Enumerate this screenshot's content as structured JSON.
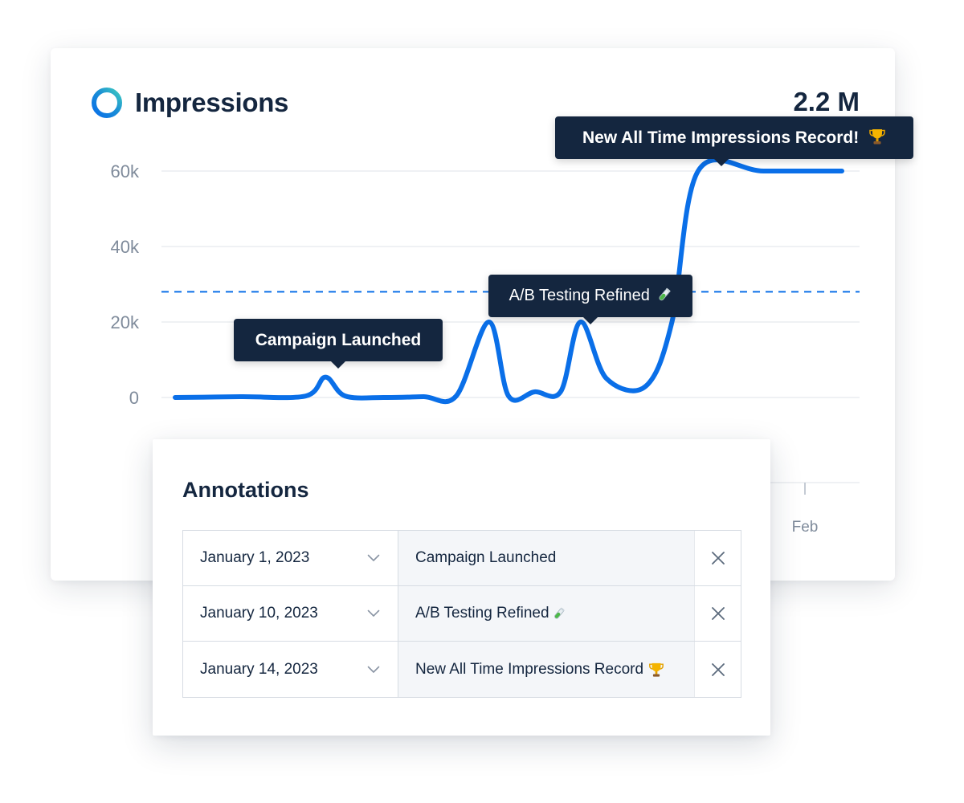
{
  "widget": {
    "title": "Impressions",
    "total": "2.2 M",
    "ring_icon": "circular-gradient-ring-icon",
    "brand_color": "#0a6fe8",
    "ring_gradient": [
      "#2bc1c4",
      "#0a6fe8"
    ]
  },
  "chart_data": {
    "type": "line",
    "y_ticks": [
      "0",
      "20k",
      "40k",
      "60k"
    ],
    "ylim": [
      0,
      60000
    ],
    "x_tick_labels": [
      "Feb"
    ],
    "grid": true,
    "reference_line": {
      "value": 28000,
      "style": "dashed"
    },
    "series": [
      {
        "color": "#0a6fe8",
        "points": [
          [
            0,
            0
          ],
          [
            1,
            200
          ],
          [
            2,
            400
          ],
          [
            2.3,
            5400
          ],
          [
            2.6,
            400
          ],
          [
            3.2,
            0
          ],
          [
            3.8,
            200
          ],
          [
            4.3,
            400
          ],
          [
            4.8,
            20000
          ],
          [
            5.1,
            400
          ],
          [
            5.5,
            1500
          ],
          [
            5.9,
            1600
          ],
          [
            6.2,
            20000
          ],
          [
            6.6,
            5000
          ],
          [
            7.2,
            3000
          ],
          [
            7.6,
            20000
          ],
          [
            8.0,
            60000
          ],
          [
            9.0,
            60000
          ],
          [
            10.2,
            60000
          ]
        ]
      }
    ],
    "annotations": [
      {
        "label": "Campaign Launched",
        "x": 2.3
      },
      {
        "label": "A/B Testing Refined",
        "emoji": "test-tube-icon",
        "x": 6.2
      },
      {
        "label": "New All Time Impressions Record!",
        "emoji": "trophy-icon",
        "x": 8.0
      }
    ]
  },
  "annotations_panel": {
    "title": "Annotations",
    "rows": [
      {
        "date": "January 1, 2023",
        "note": "Campaign Launched"
      },
      {
        "date": "January 10, 2023",
        "note": "A/B Testing Refined"
      },
      {
        "date": "January 14, 2023",
        "note": "New All Time Impressions Record"
      }
    ],
    "chevron_icon": "chevron-down-icon",
    "close_icon": "close-icon"
  }
}
